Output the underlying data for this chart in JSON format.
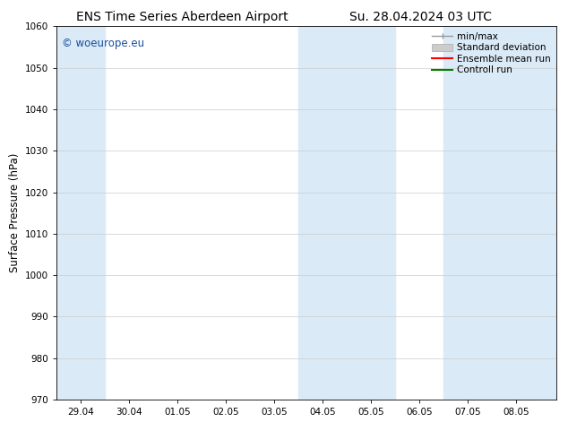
{
  "title_left": "ENS Time Series Aberdeen Airport",
  "title_right": "Su. 28.04.2024 03 UTC",
  "ylabel": "Surface Pressure (hPa)",
  "ylim": [
    970,
    1060
  ],
  "yticks": [
    970,
    980,
    990,
    1000,
    1010,
    1020,
    1030,
    1040,
    1050,
    1060
  ],
  "xlabels": [
    "29.04",
    "30.04",
    "01.05",
    "02.05",
    "03.05",
    "04.05",
    "05.05",
    "06.05",
    "07.05",
    "08.05"
  ],
  "x_positions": [
    0,
    1,
    2,
    3,
    4,
    5,
    6,
    7,
    8,
    9
  ],
  "xmin": -0.5,
  "xmax": 9.83,
  "shaded_bands": [
    {
      "xmin": -0.5,
      "xmax": 0.5
    },
    {
      "xmin": 4.5,
      "xmax": 6.5
    },
    {
      "xmin": 7.5,
      "xmax": 9.83
    }
  ],
  "shade_color": "#daeaf7",
  "watermark": "© woeurope.eu",
  "watermark_color": "#1a4f9c",
  "bg_color": "#ffffff",
  "plot_bg_color": "#ffffff",
  "title_fontsize": 10,
  "tick_fontsize": 7.5,
  "ylabel_fontsize": 8.5,
  "legend_fontsize": 7.5
}
